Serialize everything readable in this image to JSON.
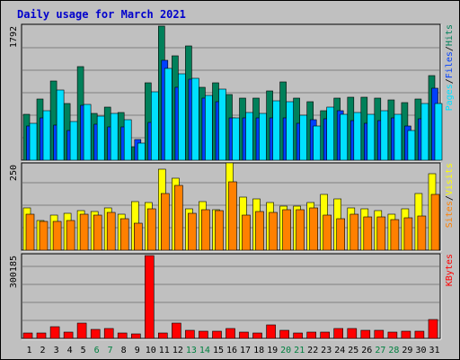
{
  "title": "Daily usage for March 2021",
  "colors": {
    "frame": "#c0c0c0",
    "hits": "#00805a",
    "files": "#0040ff",
    "pages": "#00e0ff",
    "visits": "#ffff00",
    "sites": "#ff8000",
    "kbytes": "#ff0000",
    "weekday": "#000000",
    "weekend": "#008040",
    "title": "#0000cc"
  },
  "legend": {
    "top": [
      {
        "text": "Pages",
        "color": "#00e0ff"
      },
      {
        "text": "/",
        "color": "#000000"
      },
      {
        "text": "Files",
        "color": "#0040ff"
      },
      {
        "text": "/",
        "color": "#000000"
      },
      {
        "text": "Hits",
        "color": "#00805a"
      }
    ],
    "middle": [
      {
        "text": "Sites",
        "color": "#ff8000"
      },
      {
        "text": "/",
        "color": "#000000"
      },
      {
        "text": "Visits",
        "color": "#ffff00"
      }
    ],
    "bottom": [
      {
        "text": "KBytes",
        "color": "#ff0000"
      }
    ]
  },
  "chart_data": [
    {
      "type": "bar",
      "title": "Daily usage for March 2021",
      "ylim": [
        0,
        1792
      ],
      "y_tick_label": "1792",
      "categories": [
        "1",
        "2",
        "3",
        "4",
        "5",
        "6",
        "7",
        "8",
        "9",
        "10",
        "11",
        "12",
        "13",
        "14",
        "15",
        "16",
        "17",
        "18",
        "19",
        "20",
        "21",
        "22",
        "23",
        "24",
        "25",
        "26",
        "27",
        "28",
        "29",
        "30",
        "31"
      ],
      "weekend_days": [
        "6",
        "7",
        "13",
        "14",
        "20",
        "21",
        "27",
        "28"
      ],
      "series": [
        {
          "name": "Hits",
          "values": [
            608,
            812,
            1058,
            754,
            1246,
            629,
            710,
            637,
            183,
            1033,
            1792,
            1390,
            1523,
            974,
            1038,
            872,
            835,
            835,
            932,
            1043,
            826,
            782,
            659,
            835,
            847,
            845,
            825,
            802,
            775,
            816,
            1128
          ]
        },
        {
          "name": "Files",
          "values": [
            455,
            565,
            470,
            398,
            730,
            485,
            450,
            439,
            279,
            502,
            1333,
            980,
            1087,
            830,
            780,
            566,
            566,
            566,
            566,
            566,
            498,
            536,
            555,
            663,
            532,
            498,
            532,
            566,
            455,
            550,
            960
          ]
        },
        {
          "name": "Pages",
          "values": [
            489,
            662,
            940,
            516,
            750,
            588,
            621,
            539,
            231,
            915,
            1226,
            1157,
            1090,
            862,
            955,
            566,
            639,
            622,
            792,
            784,
            601,
            459,
            705,
            611,
            637,
            615,
            659,
            612,
            397,
            755,
            755
          ]
        }
      ]
    },
    {
      "type": "bar",
      "ylim": [
        0,
        250
      ],
      "y_tick_label": "250",
      "categories": [
        "1",
        "2",
        "3",
        "4",
        "5",
        "6",
        "7",
        "8",
        "9",
        "10",
        "11",
        "12",
        "13",
        "14",
        "15",
        "16",
        "17",
        "18",
        "19",
        "20",
        "21",
        "22",
        "23",
        "24",
        "25",
        "26",
        "27",
        "28",
        "29",
        "30",
        "31"
      ],
      "series": [
        {
          "name": "Visits",
          "values": [
            124,
            88,
            103,
            108,
            117,
            113,
            124,
            104,
            141,
            140,
            236,
            210,
            121,
            142,
            118,
            256,
            155,
            150,
            140,
            128,
            128,
            140,
            163,
            151,
            124,
            121,
            116,
            106,
            120,
            166,
            224
          ]
        },
        {
          "name": "Sites",
          "values": [
            104,
            84,
            83,
            86,
            106,
            102,
            110,
            93,
            80,
            122,
            165,
            190,
            108,
            118,
            115,
            200,
            103,
            113,
            110,
            118,
            118,
            123,
            103,
            93,
            104,
            98,
            98,
            90,
            95,
            100,
            163
          ]
        }
      ]
    },
    {
      "type": "bar",
      "ylim": [
        0,
        300185
      ],
      "y_tick_label": "300185",
      "categories": [
        "1",
        "2",
        "3",
        "4",
        "5",
        "6",
        "7",
        "8",
        "9",
        "10",
        "11",
        "12",
        "13",
        "14",
        "15",
        "16",
        "17",
        "18",
        "19",
        "20",
        "21",
        "22",
        "23",
        "24",
        "25",
        "26",
        "27",
        "28",
        "29",
        "30",
        "31"
      ],
      "series": [
        {
          "name": "KBytes",
          "values": [
            18000,
            21000,
            42000,
            23000,
            54000,
            32000,
            35000,
            21000,
            16000,
            300185,
            18000,
            54000,
            30000,
            27000,
            27000,
            35000,
            23000,
            18000,
            48000,
            30000,
            18000,
            24000,
            24000,
            36000,
            36000,
            30000,
            30000,
            24000,
            26000,
            26000,
            67000
          ]
        }
      ]
    }
  ]
}
